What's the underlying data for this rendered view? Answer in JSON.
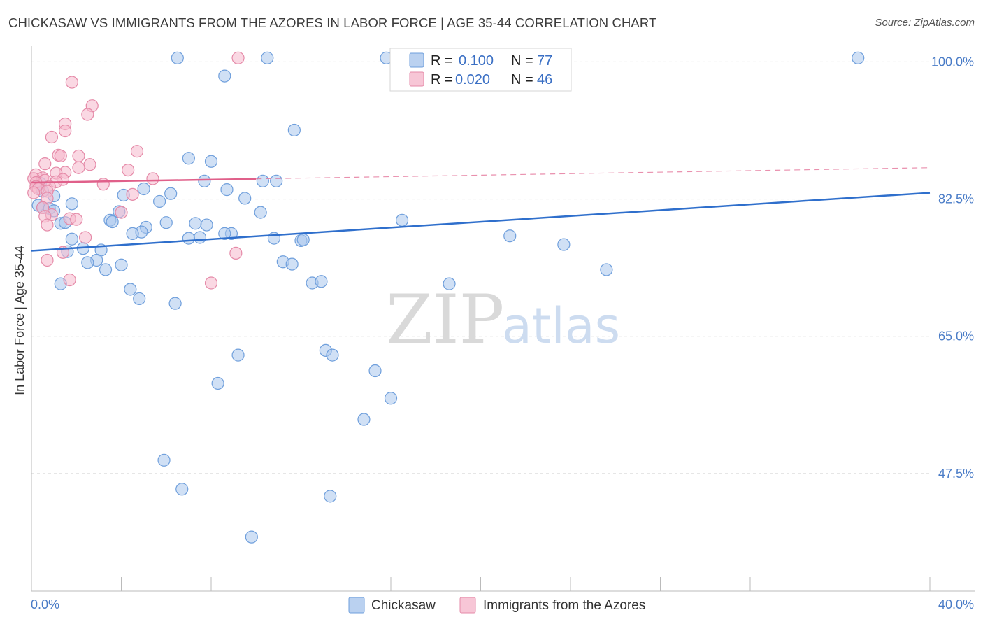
{
  "title": "CHICKASAW VS IMMIGRANTS FROM THE AZORES IN LABOR FORCE | AGE 35-44 CORRELATION CHART",
  "source": "Source: ZipAtlas.com",
  "watermark": {
    "part1": "ZIP",
    "part2": "atlas"
  },
  "colors": {
    "blue_fill": "#a9c6ec",
    "blue_stroke": "#6f9fdc",
    "blue_line": "#2f6fcc",
    "pink_fill": "#f5b8cc",
    "pink_stroke": "#e58aa8",
    "pink_line": "#e0608a",
    "grid": "#d8d8d8",
    "axis_label": "#4a7cc7"
  },
  "legend": {
    "row1": {
      "r_label": "R =",
      "r_value": "0.100",
      "n_label": "N =",
      "n_value": "77"
    },
    "row2": {
      "r_label": "R =",
      "r_value": "0.020",
      "n_label": "N =",
      "n_value": "46"
    }
  },
  "chart_data": {
    "type": "scatter",
    "title": "CHICKASAW VS IMMIGRANTS FROM THE AZORES IN LABOR FORCE | AGE 35-44 CORRELATION CHART",
    "xlabel": "",
    "ylabel": "In Labor Force | Age 35-44",
    "xlim": [
      0,
      40
    ],
    "ylim": [
      32.5,
      102
    ],
    "x_tick_labels": [
      "0.0%",
      "40.0%"
    ],
    "y_ticks": [
      47.5,
      65.0,
      82.5,
      100.0
    ],
    "y_tick_labels": [
      "47.5%",
      "65.0%",
      "82.5%",
      "100.0%"
    ],
    "grid": true,
    "legend_placement": "top-center",
    "series": [
      {
        "name": "Chickasaw",
        "color": "#a9c6ec",
        "trend": {
          "x": [
            0,
            40
          ],
          "y": [
            75.9,
            83.3
          ],
          "style": "solid"
        },
        "points": [
          [
            6.5,
            100.5
          ],
          [
            10.5,
            100.5
          ],
          [
            15.8,
            100.5
          ],
          [
            18.9,
            100.5
          ],
          [
            36.8,
            100.5
          ],
          [
            8.6,
            98.2
          ],
          [
            11.7,
            91.3
          ],
          [
            7.0,
            87.7
          ],
          [
            8.0,
            87.3
          ],
          [
            0.4,
            84.5
          ],
          [
            0.5,
            83.5
          ],
          [
            1.0,
            82.9
          ],
          [
            5.0,
            83.8
          ],
          [
            6.2,
            83.2
          ],
          [
            8.7,
            83.7
          ],
          [
            4.1,
            83.0
          ],
          [
            7.7,
            84.8
          ],
          [
            10.9,
            84.8
          ],
          [
            9.5,
            82.6
          ],
          [
            5.7,
            82.2
          ],
          [
            1.8,
            81.9
          ],
          [
            0.3,
            81.7
          ],
          [
            0.5,
            81.4
          ],
          [
            0.8,
            81.3
          ],
          [
            1.0,
            81.0
          ],
          [
            3.9,
            80.9
          ],
          [
            10.2,
            80.8
          ],
          [
            3.5,
            79.8
          ],
          [
            3.6,
            79.6
          ],
          [
            6.0,
            79.5
          ],
          [
            7.3,
            79.4
          ],
          [
            1.3,
            79.4
          ],
          [
            1.5,
            79.5
          ],
          [
            7.8,
            79.2
          ],
          [
            5.1,
            78.9
          ],
          [
            4.9,
            78.3
          ],
          [
            4.5,
            78.1
          ],
          [
            8.9,
            78.1
          ],
          [
            7.5,
            77.6
          ],
          [
            7.0,
            77.5
          ],
          [
            10.8,
            77.5
          ],
          [
            12.0,
            77.2
          ],
          [
            12.1,
            77.3
          ],
          [
            1.8,
            77.4
          ],
          [
            2.3,
            76.2
          ],
          [
            3.1,
            76.0
          ],
          [
            1.6,
            75.8
          ],
          [
            16.5,
            79.8
          ],
          [
            21.3,
            77.8
          ],
          [
            23.7,
            76.7
          ],
          [
            2.9,
            74.7
          ],
          [
            2.5,
            74.4
          ],
          [
            11.2,
            74.5
          ],
          [
            11.6,
            74.2
          ],
          [
            4.0,
            74.1
          ],
          [
            3.3,
            73.5
          ],
          [
            25.6,
            73.5
          ],
          [
            1.3,
            71.7
          ],
          [
            12.5,
            71.8
          ],
          [
            18.6,
            71.7
          ],
          [
            4.4,
            71.0
          ],
          [
            4.8,
            69.8
          ],
          [
            6.4,
            69.2
          ],
          [
            13.1,
            63.2
          ],
          [
            13.4,
            62.6
          ],
          [
            9.2,
            62.6
          ],
          [
            15.3,
            60.6
          ],
          [
            16.0,
            57.1
          ],
          [
            8.3,
            59.0
          ],
          [
            14.8,
            54.4
          ],
          [
            5.9,
            49.2
          ],
          [
            6.7,
            45.5
          ],
          [
            13.3,
            44.6
          ],
          [
            9.8,
            39.4
          ],
          [
            8.6,
            78.1
          ],
          [
            10.3,
            84.8
          ],
          [
            12.9,
            72.0
          ]
        ]
      },
      {
        "name": "Immigrants from the Azores",
        "color": "#f5b8cc",
        "trend": {
          "x": [
            0,
            40
          ],
          "y": [
            84.6,
            86.5
          ],
          "solid_until_x": 10,
          "style": "solid-then-dashed"
        },
        "points": [
          [
            9.2,
            100.5
          ],
          [
            1.8,
            97.4
          ],
          [
            2.7,
            94.4
          ],
          [
            2.5,
            93.3
          ],
          [
            1.5,
            92.1
          ],
          [
            1.5,
            91.2
          ],
          [
            0.9,
            90.4
          ],
          [
            4.7,
            88.6
          ],
          [
            1.2,
            88.1
          ],
          [
            1.3,
            88.0
          ],
          [
            2.1,
            88.0
          ],
          [
            0.6,
            87.0
          ],
          [
            2.6,
            86.9
          ],
          [
            2.1,
            86.5
          ],
          [
            4.3,
            86.2
          ],
          [
            1.5,
            85.9
          ],
          [
            1.1,
            85.8
          ],
          [
            0.2,
            85.6
          ],
          [
            0.5,
            85.2
          ],
          [
            0.1,
            85.1
          ],
          [
            1.4,
            85.0
          ],
          [
            5.4,
            85.1
          ],
          [
            0.6,
            84.9
          ],
          [
            0.2,
            84.6
          ],
          [
            1.1,
            84.7
          ],
          [
            3.2,
            84.4
          ],
          [
            0.2,
            84.1
          ],
          [
            0.8,
            84.1
          ],
          [
            0.3,
            83.8
          ],
          [
            0.7,
            83.5
          ],
          [
            0.1,
            83.3
          ],
          [
            4.5,
            83.1
          ],
          [
            0.7,
            82.6
          ],
          [
            0.5,
            81.4
          ],
          [
            4.0,
            80.8
          ],
          [
            0.9,
            80.5
          ],
          [
            1.7,
            80.0
          ],
          [
            0.6,
            80.3
          ],
          [
            0.7,
            79.2
          ],
          [
            2.0,
            79.9
          ],
          [
            2.4,
            77.6
          ],
          [
            1.4,
            75.7
          ],
          [
            9.1,
            75.6
          ],
          [
            0.7,
            74.7
          ],
          [
            1.7,
            72.2
          ],
          [
            8.0,
            71.8
          ]
        ]
      }
    ]
  },
  "bottom_legend": [
    {
      "label": "Chickasaw"
    },
    {
      "label": "Immigrants from the Azores"
    }
  ]
}
